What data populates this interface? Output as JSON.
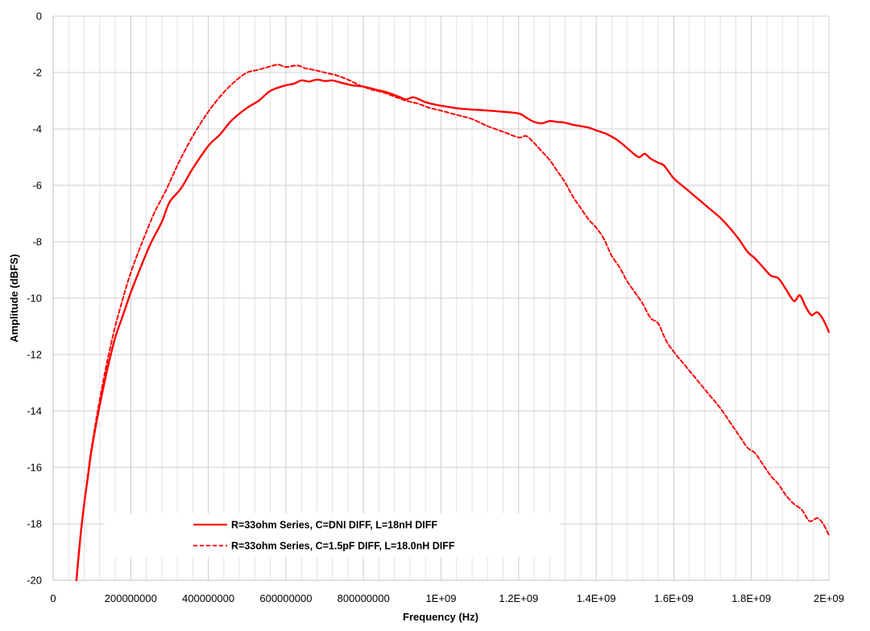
{
  "chart_data": {
    "type": "line",
    "title": "",
    "xlabel": "Frequency (Hz)",
    "ylabel": "Amplitude (dBFS)",
    "xlim": [
      0,
      2000000000
    ],
    "ylim": [
      -20,
      0
    ],
    "x_ticks": [
      0,
      200000000,
      400000000,
      600000000,
      800000000,
      1000000000,
      1200000000,
      1400000000,
      1600000000,
      1800000000,
      2000000000
    ],
    "x_tick_labels": [
      "0",
      "200000000",
      "400000000",
      "600000000",
      "800000000",
      "1E+09",
      "1.2E+09",
      "1.4E+09",
      "1.6E+09",
      "1.8E+09",
      "2E+09"
    ],
    "y_ticks": [
      0,
      -2,
      -4,
      -6,
      -8,
      -10,
      -12,
      -14,
      -16,
      -18,
      -20
    ],
    "y_tick_labels": [
      "0",
      "-2",
      "-4",
      "-6",
      "-8",
      "-10",
      "-12",
      "-14",
      "-16",
      "-18",
      "-20"
    ],
    "grid": true,
    "legend_position": "bottom-left",
    "series": [
      {
        "name": "R=33ohm Series, C=DNI DIFF, L=18nH DIFF",
        "color": "#ff0000",
        "dash": "solid",
        "x": [
          60000000,
          70000000,
          80000000,
          90000000,
          100000000,
          120000000,
          140000000,
          160000000,
          180000000,
          200000000,
          220000000,
          250000000,
          280000000,
          300000000,
          330000000,
          360000000,
          400000000,
          430000000,
          460000000,
          500000000,
          530000000,
          560000000,
          600000000,
          620000000,
          640000000,
          660000000,
          680000000,
          700000000,
          720000000,
          740000000,
          770000000,
          800000000,
          830000000,
          860000000,
          890000000,
          910000000,
          930000000,
          960000000,
          990000000,
          1020000000,
          1050000000,
          1100000000,
          1150000000,
          1200000000,
          1220000000,
          1240000000,
          1260000000,
          1280000000,
          1300000000,
          1320000000,
          1340000000,
          1360000000,
          1380000000,
          1400000000,
          1430000000,
          1460000000,
          1490000000,
          1510000000,
          1525000000,
          1540000000,
          1560000000,
          1575000000,
          1600000000,
          1630000000,
          1660000000,
          1690000000,
          1720000000,
          1750000000,
          1770000000,
          1790000000,
          1810000000,
          1830000000,
          1850000000,
          1870000000,
          1890000000,
          1910000000,
          1925000000,
          1940000000,
          1955000000,
          1970000000,
          1985000000,
          2000000000
        ],
        "y": [
          -20.0,
          -18.5,
          -17.3,
          -16.3,
          -15.3,
          -13.8,
          -12.5,
          -11.4,
          -10.6,
          -9.8,
          -9.1,
          -8.1,
          -7.3,
          -6.6,
          -6.1,
          -5.4,
          -4.6,
          -4.2,
          -3.7,
          -3.25,
          -3.0,
          -2.65,
          -2.45,
          -2.4,
          -2.28,
          -2.32,
          -2.25,
          -2.3,
          -2.28,
          -2.35,
          -2.45,
          -2.5,
          -2.6,
          -2.7,
          -2.85,
          -2.95,
          -2.88,
          -3.05,
          -3.15,
          -3.22,
          -3.28,
          -3.33,
          -3.38,
          -3.45,
          -3.6,
          -3.75,
          -3.8,
          -3.72,
          -3.75,
          -3.78,
          -3.85,
          -3.9,
          -3.95,
          -4.05,
          -4.2,
          -4.45,
          -4.8,
          -5.0,
          -4.88,
          -5.05,
          -5.2,
          -5.3,
          -5.75,
          -6.1,
          -6.45,
          -6.8,
          -7.15,
          -7.6,
          -7.95,
          -8.35,
          -8.6,
          -8.9,
          -9.2,
          -9.3,
          -9.7,
          -10.1,
          -9.9,
          -10.3,
          -10.6,
          -10.5,
          -10.75,
          -11.2
        ]
      },
      {
        "name": "R=33ohm Series, C=1.5pF DIFF, L=18.0nH DIFF",
        "color": "#ff0000",
        "dash": "dashed",
        "x": [
          60000000,
          70000000,
          80000000,
          90000000,
          100000000,
          120000000,
          140000000,
          160000000,
          180000000,
          200000000,
          230000000,
          260000000,
          290000000,
          320000000,
          350000000,
          380000000,
          410000000,
          440000000,
          470000000,
          500000000,
          530000000,
          560000000,
          580000000,
          600000000,
          630000000,
          650000000,
          670000000,
          700000000,
          730000000,
          760000000,
          790000000,
          820000000,
          850000000,
          880000000,
          910000000,
          940000000,
          970000000,
          1000000000,
          1040000000,
          1080000000,
          1120000000,
          1160000000,
          1200000000,
          1220000000,
          1240000000,
          1260000000,
          1280000000,
          1300000000,
          1320000000,
          1340000000,
          1360000000,
          1380000000,
          1400000000,
          1420000000,
          1440000000,
          1460000000,
          1480000000,
          1500000000,
          1520000000,
          1540000000,
          1560000000,
          1580000000,
          1600000000,
          1630000000,
          1660000000,
          1690000000,
          1720000000,
          1750000000,
          1770000000,
          1790000000,
          1810000000,
          1830000000,
          1850000000,
          1870000000,
          1890000000,
          1910000000,
          1930000000,
          1950000000,
          1970000000,
          1985000000,
          2000000000
        ],
        "y": [
          -20.0,
          -18.5,
          -17.3,
          -16.2,
          -15.2,
          -13.6,
          -12.2,
          -11.0,
          -10.0,
          -9.1,
          -8.0,
          -7.0,
          -6.2,
          -5.3,
          -4.5,
          -3.8,
          -3.2,
          -2.7,
          -2.3,
          -2.0,
          -1.9,
          -1.78,
          -1.72,
          -1.8,
          -1.75,
          -1.85,
          -1.9,
          -2.0,
          -2.1,
          -2.25,
          -2.45,
          -2.6,
          -2.7,
          -2.85,
          -3.0,
          -3.1,
          -3.25,
          -3.35,
          -3.5,
          -3.65,
          -3.9,
          -4.1,
          -4.3,
          -4.25,
          -4.5,
          -4.8,
          -5.1,
          -5.5,
          -5.9,
          -6.4,
          -6.8,
          -7.2,
          -7.5,
          -7.9,
          -8.5,
          -8.9,
          -9.4,
          -9.8,
          -10.2,
          -10.7,
          -10.9,
          -11.5,
          -11.9,
          -12.4,
          -12.9,
          -13.4,
          -13.9,
          -14.5,
          -14.9,
          -15.3,
          -15.5,
          -15.9,
          -16.3,
          -16.6,
          -17.0,
          -17.3,
          -17.5,
          -17.9,
          -17.8,
          -18.0,
          -18.4
        ]
      }
    ]
  }
}
